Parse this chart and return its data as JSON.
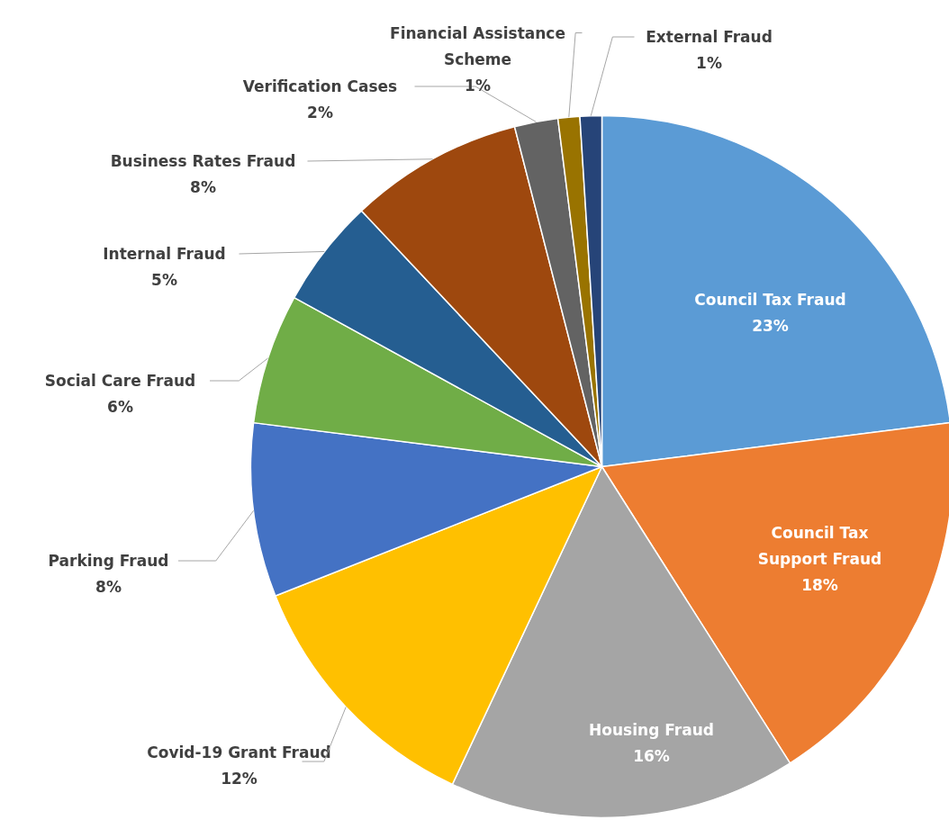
{
  "chart_data": {
    "type": "pie",
    "categories": [
      "Council Tax Fraud",
      "Council Tax Support Fraud",
      "Housing Fraud",
      "Covid-19 Grant Fraud",
      "Parking Fraud",
      "Social Care Fraud",
      "Internal Fraud",
      "Business Rates Fraud",
      "Verification Cases",
      "Financial Assistance Scheme",
      "External Fraud"
    ],
    "values": [
      23,
      18,
      16,
      12,
      8,
      6,
      5,
      8,
      2,
      1,
      1
    ],
    "value_labels": [
      "23%",
      "18%",
      "16%",
      "12%",
      "8%",
      "6%",
      "5%",
      "8%",
      "2%",
      "1%",
      "1%"
    ],
    "colors": [
      "#5b9bd5",
      "#ed7d31",
      "#a5a5a5",
      "#ffc000",
      "#4472c4",
      "#70ad47",
      "#255e91",
      "#9e480e",
      "#636363",
      "#997300",
      "#264478"
    ]
  }
}
